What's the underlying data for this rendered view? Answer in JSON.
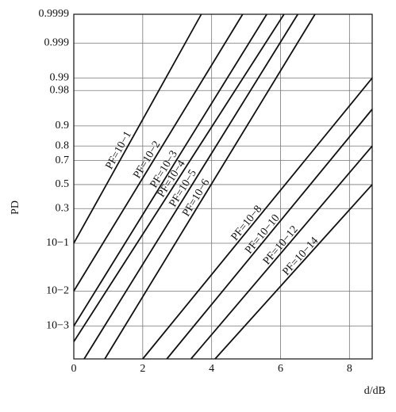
{
  "chart_data": {
    "type": "line",
    "yscale": "probit",
    "grid": true,
    "xlabel": "d/dB",
    "ylabel": "PD",
    "xlim": [
      0,
      8.66
    ],
    "xticks": [
      0,
      2,
      4,
      6,
      8
    ],
    "ylim": [
      7e-05,
      0.9999
    ],
    "yticks": [
      {
        "value": 0.001,
        "label": "10−3"
      },
      {
        "value": 0.01,
        "label": "10−2"
      },
      {
        "value": 0.1,
        "label": "10−1"
      },
      0.3,
      0.5,
      0.7,
      0.8,
      0.9,
      0.98,
      0.99,
      0.999,
      0.9999
    ],
    "color": "#111111",
    "series": [
      {
        "name": "PF=10−1",
        "x": [
          0,
          3.7
        ],
        "values": [
          0.1,
          0.9999
        ]
      },
      {
        "name": "PF=10−2",
        "x": [
          0,
          4.9
        ],
        "values": [
          0.01,
          0.9999
        ]
      },
      {
        "name": "PF=10−3",
        "x": [
          0,
          5.6
        ],
        "values": [
          0.001,
          0.9999
        ]
      },
      {
        "name": "PF=10−4",
        "x": [
          0,
          6.1
        ],
        "values": [
          0.0003,
          0.9999
        ]
      },
      {
        "name": "PF=10−5",
        "x": [
          0.3,
          6.5
        ],
        "values": [
          7e-05,
          0.9999
        ]
      },
      {
        "name": "PF=10−6",
        "x": [
          0.9,
          7.0
        ],
        "values": [
          7e-05,
          0.9999
        ]
      },
      {
        "name": "PF=10−8",
        "x": [
          2.0,
          8.66
        ],
        "values": [
          7e-05,
          0.99
        ]
      },
      {
        "name": "PF=10−10",
        "x": [
          2.7,
          8.66
        ],
        "values": [
          7e-05,
          0.95
        ]
      },
      {
        "name": "PF=10−12",
        "x": [
          3.4,
          8.66
        ],
        "values": [
          7e-05,
          0.8
        ]
      },
      {
        "name": "PF=10−14",
        "x": [
          4.1,
          8.66
        ],
        "values": [
          7e-05,
          0.5
        ]
      }
    ]
  }
}
